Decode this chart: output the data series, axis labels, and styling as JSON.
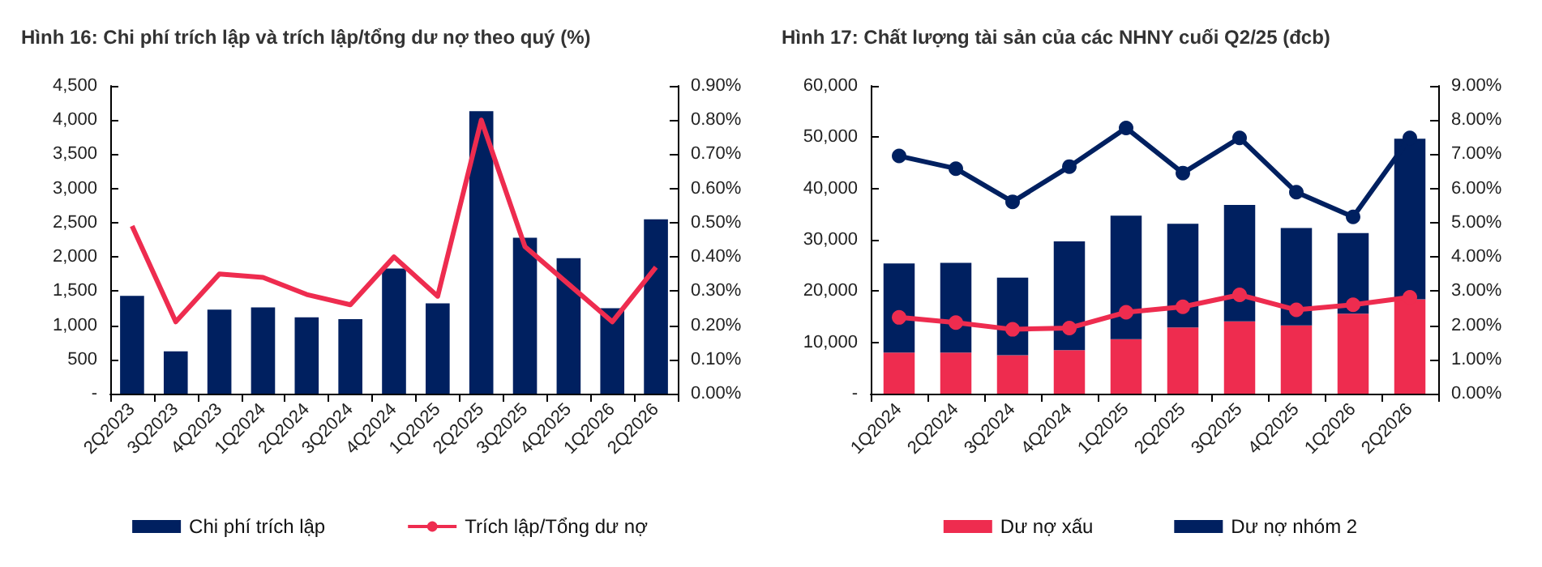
{
  "chart_data": [
    {
      "type": "bar",
      "title": "Hình 16: Chi phí trích lập và trích lập/tổng dư nợ theo quý (%)",
      "categories": [
        "2Q2023",
        "3Q2023",
        "4Q2023",
        "1Q2024",
        "2Q2024",
        "3Q2024",
        "4Q2024",
        "1Q2025",
        "2Q2025",
        "3Q2025",
        "4Q2025",
        "1Q2026",
        "2Q2026"
      ],
      "series": [
        {
          "name": "Chi phí trích lập",
          "color": "#002060",
          "values": [
            1430,
            620,
            1230,
            1260,
            1115,
            1090,
            1830,
            1320,
            4130,
            2280,
            1980,
            1250,
            2550
          ]
        },
        {
          "name": "Trích lập/Tổng dư nợ",
          "type": "line",
          "axis": "y2",
          "color": "#ee2c4f",
          "marker": "none",
          "values": [
            0.49,
            0.21,
            0.35,
            0.34,
            0.29,
            0.26,
            0.4,
            0.285,
            0.8,
            0.43,
            0.32,
            0.21,
            0.37
          ]
        }
      ],
      "ylim": [
        0,
        4500
      ],
      "yticks": [
        {
          "value": 0,
          "label": "-"
        },
        500,
        {
          "value": 1000,
          "label": "1,000"
        },
        {
          "value": 1500,
          "label": "1,500"
        },
        {
          "value": 2000,
          "label": "2,000"
        },
        {
          "value": 2500,
          "label": "2,500"
        },
        {
          "value": 3000,
          "label": "3,000"
        },
        {
          "value": 3500,
          "label": "3,500"
        },
        {
          "value": 4000,
          "label": "4,000"
        },
        {
          "value": 4500,
          "label": "4,500"
        }
      ],
      "y2lim": [
        0,
        0.9
      ],
      "y2ticks": [
        {
          "value": 0,
          "label": "0.00%"
        },
        {
          "value": 0.1,
          "label": "0.10%"
        },
        {
          "value": 0.2,
          "label": "0.20%"
        },
        {
          "value": 0.3,
          "label": "0.30%"
        },
        {
          "value": 0.4,
          "label": "0.40%"
        },
        {
          "value": 0.5,
          "label": "0.50%"
        },
        {
          "value": 0.6,
          "label": "0.60%"
        },
        {
          "value": 0.7,
          "label": "0.70%"
        },
        {
          "value": 0.8,
          "label": "0.80%"
        },
        {
          "value": 0.9,
          "label": "0.90%"
        }
      ],
      "grid": false,
      "legend": "bottom"
    },
    {
      "type": "bar",
      "title": "Hình 17: Chất lượng tài sản của các NHNY cuối Q2/25 (đcb)",
      "categories": [
        "1Q2024",
        "2Q2024",
        "3Q2024",
        "4Q2024",
        "1Q2025",
        "2Q2025",
        "3Q2025",
        "4Q2025",
        "1Q2026",
        "2Q2026"
      ],
      "stacked": true,
      "series": [
        {
          "name": "Dư nợ xấu",
          "color": "#ee2c4f",
          "values": [
            8000,
            8000,
            7500,
            8500,
            10600,
            12900,
            14100,
            13300,
            15600,
            18400
          ]
        },
        {
          "name": "Dư nợ nhóm 2",
          "color": "#002060",
          "values": [
            17400,
            17500,
            15100,
            21200,
            24100,
            20200,
            22700,
            19000,
            15700,
            31300
          ]
        },
        {
          "type": "line",
          "axis": "y2",
          "color": "#002060",
          "marker": "circle",
          "values": [
            6.95,
            6.58,
            5.61,
            6.64,
            7.77,
            6.45,
            7.48,
            5.89,
            5.17,
            7.48
          ]
        },
        {
          "type": "line",
          "axis": "y2",
          "color": "#ee2c4f",
          "marker": "circle",
          "values": [
            2.23,
            2.08,
            1.88,
            1.92,
            2.38,
            2.54,
            2.89,
            2.45,
            2.6,
            2.82
          ]
        }
      ],
      "ylim": [
        0,
        60000
      ],
      "yticks": [
        {
          "value": 0,
          "label": "-"
        },
        {
          "value": 10000,
          "label": "10,000"
        },
        {
          "value": 20000,
          "label": "20,000"
        },
        {
          "value": 30000,
          "label": "30,000"
        },
        {
          "value": 40000,
          "label": "40,000"
        },
        {
          "value": 50000,
          "label": "50,000"
        },
        {
          "value": 60000,
          "label": "60,000"
        }
      ],
      "y2lim": [
        0,
        9
      ],
      "y2ticks": [
        {
          "value": 0,
          "label": "0.00%"
        },
        {
          "value": 1,
          "label": "1.00%"
        },
        {
          "value": 2,
          "label": "2.00%"
        },
        {
          "value": 3,
          "label": "3.00%"
        },
        {
          "value": 4,
          "label": "4.00%"
        },
        {
          "value": 5,
          "label": "5.00%"
        },
        {
          "value": 6,
          "label": "6.00%"
        },
        {
          "value": 7,
          "label": "7.00%"
        },
        {
          "value": 8,
          "label": "8.00%"
        },
        {
          "value": 9,
          "label": "9.00%"
        }
      ],
      "grid": false,
      "legend": "bottom"
    }
  ]
}
